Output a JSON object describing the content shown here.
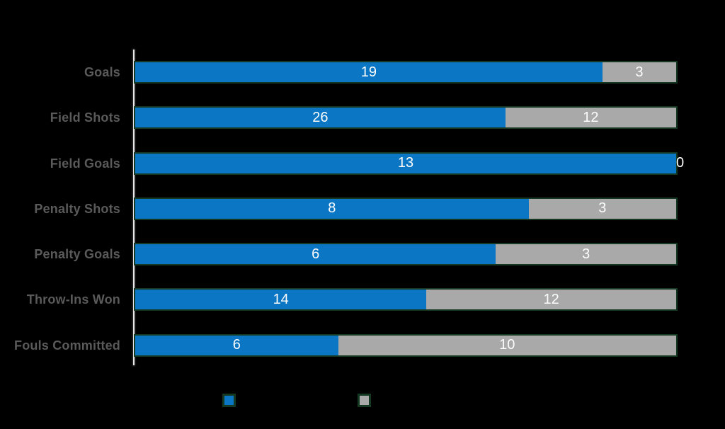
{
  "background_color": "#000000",
  "chart_data": {
    "type": "bar",
    "variant": "horizontal-100percent-stacked",
    "title": "",
    "xlabel": "",
    "ylabel": "",
    "grid": false,
    "categories": [
      "Goals",
      "Field Shots",
      "Field Goals",
      "Penalty Shots",
      "Penalty Goals",
      "Throw-Ins Won",
      "Fouls Committed"
    ],
    "series": [
      {
        "name": "",
        "color": "#0b76c4",
        "values": [
          19,
          26,
          13,
          8,
          6,
          14,
          6
        ]
      },
      {
        "name": "",
        "color": "#a9a9a9",
        "values": [
          3,
          12,
          0,
          3,
          3,
          12,
          10
        ]
      }
    ],
    "value_labels": {
      "shown": true,
      "position": "center-of-segment",
      "color": "#fcfcfc"
    },
    "category_label_color": "#5a5a5a",
    "axis_line_color": "#e9e9e9",
    "legend": {
      "position": "bottom",
      "labels_visible": false,
      "swatch_colors": [
        "#0b76c4",
        "#a9a9a9"
      ]
    }
  }
}
